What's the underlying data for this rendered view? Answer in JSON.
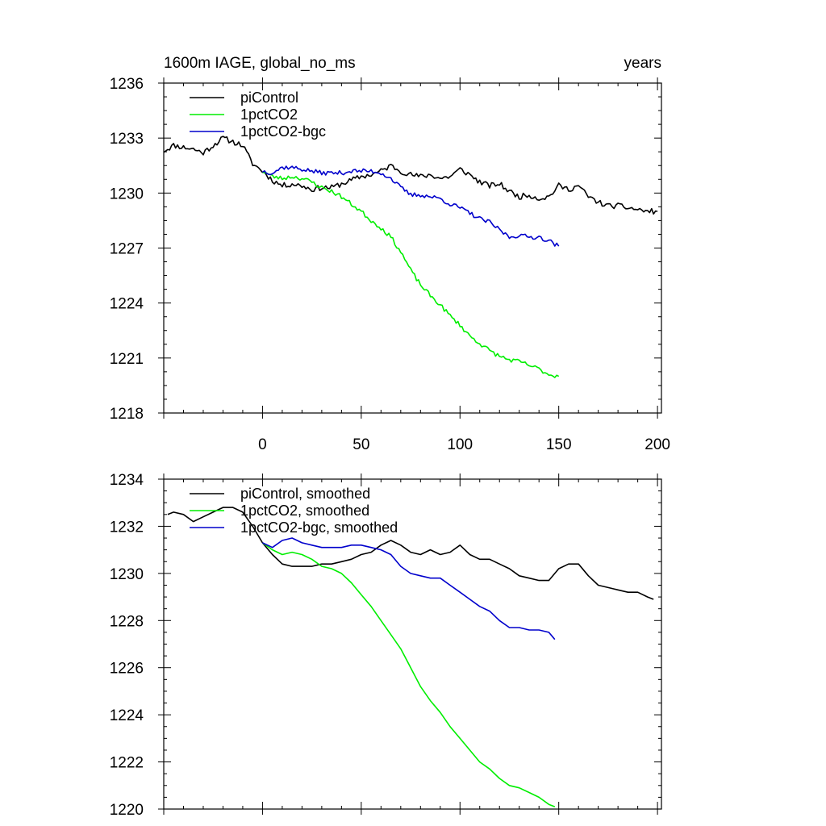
{
  "colors": {
    "piControl": "#000000",
    "1pctCO2": "#00ee00",
    "1pctCO2-bgc": "#0000cc",
    "axis": "#000000"
  },
  "chart_data": [
    {
      "type": "line",
      "title": "1600m IAGE, global_no_ms",
      "units": "years",
      "xlim": [
        -50,
        202
      ],
      "ylim": [
        1218,
        1236
      ],
      "xticks": [
        0,
        50,
        100,
        150,
        200
      ],
      "xtick_labels": [
        "0",
        "50",
        "100",
        "150",
        "200"
      ],
      "yticks": [
        1218,
        1221,
        1224,
        1227,
        1230,
        1233,
        1236
      ],
      "ytick_labels": [
        "1218",
        "1221",
        "1224",
        "1227",
        "1230",
        "1233",
        "1236"
      ],
      "legend": [
        "piControl",
        "1pctCO2",
        "1pctCO2-bgc"
      ],
      "legend_position": "top-left",
      "series": [
        {
          "name": "piControl",
          "color_key": "piControl",
          "x": [
            -50,
            -45,
            -40,
            -35,
            -30,
            -25,
            -20,
            -15,
            -10,
            -5,
            0,
            5,
            10,
            15,
            20,
            25,
            30,
            35,
            40,
            45,
            50,
            55,
            60,
            65,
            70,
            75,
            80,
            85,
            90,
            95,
            100,
            105,
            110,
            115,
            120,
            125,
            130,
            135,
            140,
            145,
            150,
            155,
            160,
            165,
            170,
            175,
            180,
            185,
            190,
            195,
            200
          ],
          "y": [
            1232.3,
            1232.6,
            1232.5,
            1232.4,
            1232.2,
            1232.6,
            1233.0,
            1232.8,
            1232.6,
            1231.6,
            1231.2,
            1230.7,
            1230.4,
            1230.5,
            1230.4,
            1230.2,
            1230.3,
            1230.3,
            1230.5,
            1230.7,
            1230.9,
            1231.0,
            1231.2,
            1231.5,
            1231.2,
            1231.0,
            1230.9,
            1231.0,
            1230.8,
            1230.9,
            1231.3,
            1231.0,
            1230.6,
            1230.4,
            1230.5,
            1230.1,
            1229.8,
            1229.9,
            1229.7,
            1229.8,
            1230.4,
            1230.2,
            1230.4,
            1229.8,
            1229.5,
            1229.3,
            1229.3,
            1229.2,
            1229.1,
            1229.0,
            1229.0
          ],
          "noise": 0.15,
          "seed": 11
        },
        {
          "name": "1pctCO2",
          "color_key": "1pctCO2",
          "x": [
            0,
            5,
            10,
            15,
            20,
            25,
            30,
            35,
            40,
            45,
            50,
            55,
            60,
            65,
            70,
            75,
            80,
            85,
            90,
            95,
            100,
            105,
            110,
            115,
            120,
            125,
            130,
            135,
            140,
            145,
            150
          ],
          "y": [
            1231.2,
            1230.9,
            1230.8,
            1230.9,
            1230.8,
            1230.6,
            1230.3,
            1230.1,
            1229.8,
            1229.4,
            1229.0,
            1228.5,
            1228.1,
            1227.6,
            1226.8,
            1225.8,
            1225.0,
            1224.4,
            1223.9,
            1223.3,
            1222.8,
            1222.2,
            1221.8,
            1221.4,
            1221.1,
            1220.9,
            1220.8,
            1220.6,
            1220.4,
            1220.1,
            1220.0
          ],
          "noise": 0.12,
          "seed": 23
        },
        {
          "name": "1pctCO2-bgc",
          "color_key": "1pctCO2-bgc",
          "x": [
            0,
            5,
            10,
            15,
            20,
            25,
            30,
            35,
            40,
            45,
            50,
            55,
            60,
            65,
            70,
            75,
            80,
            85,
            90,
            95,
            100,
            105,
            110,
            115,
            120,
            125,
            130,
            135,
            140,
            145,
            150
          ],
          "y": [
            1231.2,
            1231.1,
            1231.4,
            1231.4,
            1231.3,
            1231.2,
            1231.1,
            1231.1,
            1231.1,
            1231.2,
            1231.2,
            1231.2,
            1231.1,
            1230.8,
            1230.3,
            1229.9,
            1229.9,
            1229.8,
            1229.7,
            1229.4,
            1229.2,
            1228.9,
            1228.6,
            1228.4,
            1228.0,
            1227.6,
            1227.7,
            1227.6,
            1227.6,
            1227.4,
            1227.1
          ],
          "noise": 0.12,
          "seed": 37
        }
      ]
    },
    {
      "type": "line",
      "title": "",
      "xlim": [
        -50,
        202
      ],
      "ylim": [
        1220,
        1234
      ],
      "xticks": [
        0,
        50,
        100,
        150,
        200
      ],
      "yticks": [
        1220,
        1222,
        1224,
        1226,
        1228,
        1230,
        1232,
        1234
      ],
      "ytick_labels": [
        "1220",
        "1222",
        "1224",
        "1226",
        "1228",
        "1230",
        "1232",
        "1234"
      ],
      "legend": [
        "piControl, smoothed",
        "1pctCO2, smoothed",
        "1pctCO2-bgc, smoothed"
      ],
      "legend_position": "top-left",
      "series": [
        {
          "name": "piControl, smoothed",
          "color_key": "piControl",
          "x": [
            -48,
            -45,
            -40,
            -35,
            -30,
            -25,
            -20,
            -15,
            -10,
            -5,
            0,
            5,
            10,
            15,
            20,
            25,
            30,
            35,
            40,
            45,
            50,
            55,
            60,
            65,
            70,
            75,
            80,
            85,
            90,
            95,
            100,
            105,
            110,
            115,
            120,
            125,
            130,
            135,
            140,
            145,
            150,
            155,
            160,
            165,
            170,
            175,
            180,
            185,
            190,
            195,
            198
          ],
          "y": [
            1232.5,
            1232.6,
            1232.5,
            1232.2,
            1232.4,
            1232.6,
            1232.8,
            1232.8,
            1232.6,
            1232.0,
            1231.3,
            1230.8,
            1230.4,
            1230.3,
            1230.3,
            1230.3,
            1230.4,
            1230.4,
            1230.5,
            1230.6,
            1230.8,
            1230.9,
            1231.2,
            1231.4,
            1231.2,
            1230.9,
            1230.8,
            1231.0,
            1230.8,
            1230.9,
            1231.2,
            1230.8,
            1230.6,
            1230.6,
            1230.4,
            1230.2,
            1229.9,
            1229.8,
            1229.7,
            1229.7,
            1230.2,
            1230.4,
            1230.4,
            1229.9,
            1229.5,
            1229.4,
            1229.3,
            1229.2,
            1229.2,
            1229.0,
            1228.9
          ]
        },
        {
          "name": "1pctCO2, smoothed",
          "color_key": "1pctCO2",
          "x": [
            0,
            5,
            10,
            15,
            20,
            25,
            30,
            35,
            40,
            45,
            50,
            55,
            60,
            65,
            70,
            75,
            80,
            85,
            90,
            95,
            100,
            105,
            110,
            115,
            120,
            125,
            130,
            135,
            140,
            145,
            148
          ],
          "y": [
            1231.3,
            1231.0,
            1230.8,
            1230.9,
            1230.8,
            1230.6,
            1230.3,
            1230.2,
            1230.0,
            1229.6,
            1229.1,
            1228.6,
            1228.0,
            1227.4,
            1226.8,
            1226.0,
            1225.2,
            1224.6,
            1224.1,
            1223.5,
            1223.0,
            1222.5,
            1222.0,
            1221.7,
            1221.3,
            1221.0,
            1220.9,
            1220.7,
            1220.5,
            1220.2,
            1220.1
          ]
        },
        {
          "name": "1pctCO2-bgc, smoothed",
          "color_key": "1pctCO2-bgc",
          "x": [
            0,
            5,
            10,
            15,
            20,
            25,
            30,
            35,
            40,
            45,
            50,
            55,
            60,
            65,
            70,
            75,
            80,
            85,
            90,
            95,
            100,
            105,
            110,
            115,
            120,
            125,
            130,
            135,
            140,
            145,
            148
          ],
          "y": [
            1231.3,
            1231.1,
            1231.4,
            1231.5,
            1231.3,
            1231.2,
            1231.1,
            1231.1,
            1231.1,
            1231.2,
            1231.2,
            1231.1,
            1231.0,
            1230.8,
            1230.3,
            1230.0,
            1229.9,
            1229.8,
            1229.8,
            1229.5,
            1229.2,
            1228.9,
            1228.6,
            1228.4,
            1228.0,
            1227.7,
            1227.7,
            1227.6,
            1227.6,
            1227.5,
            1227.2
          ]
        }
      ]
    }
  ]
}
